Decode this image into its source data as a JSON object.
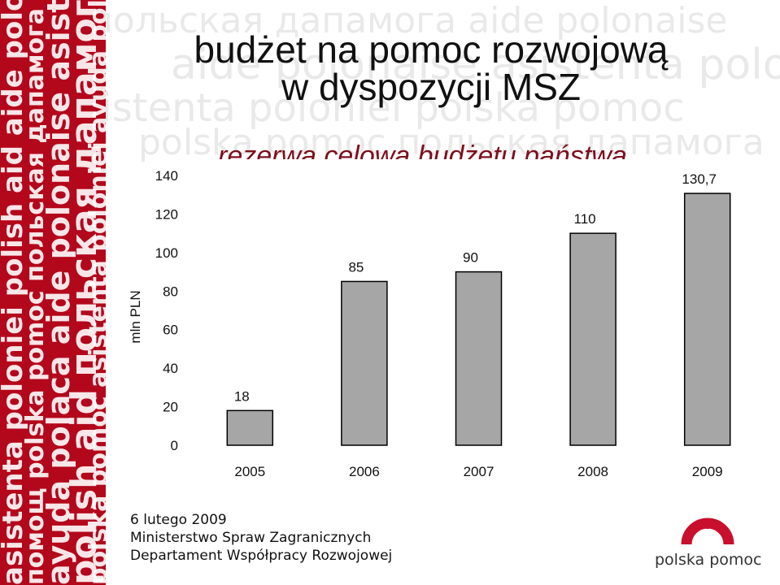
{
  "slide": {
    "title_line1": "budżet na pomoc rozwojową",
    "title_line2": "w dyspozycji MSZ",
    "subtitle": "rezerwa celowa budżetu państwa"
  },
  "footer": {
    "date": "6 lutego 2009",
    "ministry": "Ministerstwo Spraw Zagranicznych",
    "department": "Departament Współpracy Rozwojowej"
  },
  "logo": {
    "text": "polska pomoc"
  },
  "decor": {
    "band_texts": [
      "asistenta poloniei",
      "помощ",
      "ayuda polaca",
      "polish aid",
      "polska pomoc",
      "aide polonaise",
      "польская дапамога"
    ],
    "watermark_texts": [
      "польская дапамога",
      "aide polonaise",
      "asistenta poloniei",
      "polska pomoc"
    ]
  },
  "colors": {
    "band": "#b3071c",
    "bar": "#a6a6a6",
    "subtitle": "#7d0f1c",
    "logo_red": "#c8102e"
  },
  "chart_data": {
    "type": "bar",
    "categories": [
      "2005",
      "2006",
      "2007",
      "2008",
      "2009"
    ],
    "values": [
      18,
      85,
      90,
      110,
      130.7
    ],
    "value_labels": [
      "18",
      "85",
      "90",
      "110",
      "130,7"
    ],
    "ylabel": "mln PLN",
    "ylim": [
      0,
      140
    ],
    "yticks": [
      0,
      20,
      40,
      60,
      80,
      100,
      120,
      140
    ],
    "grid": false,
    "legend": "none"
  }
}
